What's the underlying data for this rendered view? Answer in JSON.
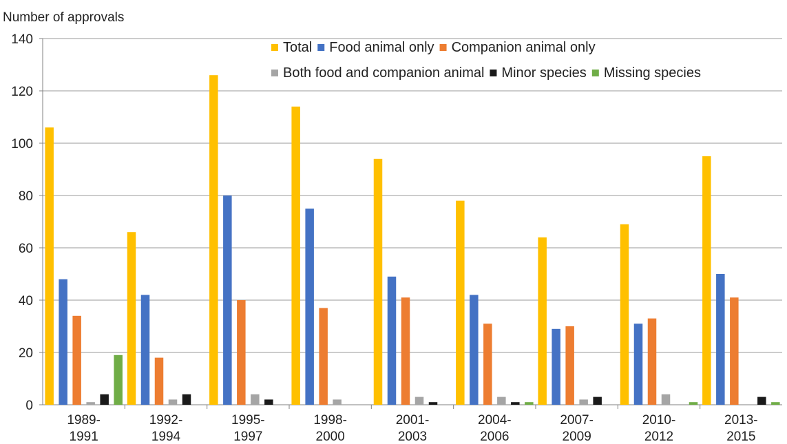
{
  "chart_data": {
    "type": "bar",
    "title": "",
    "ylabel": "Number of approvals",
    "xlabel": "",
    "ylim": [
      0,
      140
    ],
    "yticks": [
      0,
      20,
      40,
      60,
      80,
      100,
      120,
      140
    ],
    "grid": "horizontal",
    "legend_position": "top-right",
    "categories": [
      [
        "1989-",
        "1991"
      ],
      [
        "1992-",
        "1994"
      ],
      [
        "1995-",
        "1997"
      ],
      [
        "1998-",
        "2000"
      ],
      [
        "2001-",
        "2003"
      ],
      [
        "2004-",
        "2006"
      ],
      [
        "2007-",
        "2009"
      ],
      [
        "2010-",
        "2012"
      ],
      [
        "2013-",
        "2015"
      ]
    ],
    "series": [
      {
        "name": "Total",
        "color": "#FFC000",
        "values": [
          106,
          66,
          126,
          114,
          94,
          78,
          64,
          69,
          95
        ]
      },
      {
        "name": "Food animal only",
        "color": "#4472C4",
        "values": [
          48,
          42,
          80,
          75,
          49,
          42,
          29,
          31,
          50
        ]
      },
      {
        "name": "Companion animal only",
        "color": "#ED7D31",
        "values": [
          34,
          18,
          40,
          37,
          41,
          31,
          30,
          33,
          41
        ]
      },
      {
        "name": "Both food and companion animal",
        "color": "#A5A5A5",
        "values": [
          1,
          2,
          4,
          2,
          3,
          3,
          2,
          4,
          0
        ]
      },
      {
        "name": "Minor species",
        "color": "#1A1A1A",
        "values": [
          4,
          4,
          2,
          0,
          1,
          1,
          3,
          0,
          3
        ]
      },
      {
        "name": "Missing species",
        "color": "#70AD47",
        "values": [
          19,
          0,
          0,
          0,
          0,
          1,
          0,
          1,
          1
        ]
      }
    ]
  }
}
